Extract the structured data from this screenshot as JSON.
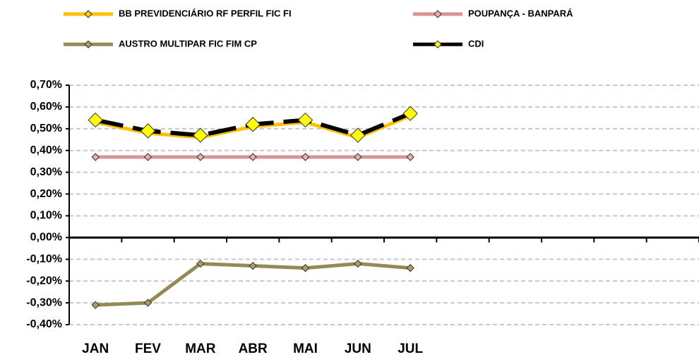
{
  "chart_data": {
    "type": "line",
    "categories": [
      "JAN",
      "FEV",
      "MAR",
      "ABR",
      "MAI",
      "JUN",
      "JUL",
      null,
      null,
      null,
      null,
      null
    ],
    "series": [
      {
        "name": "BB PREVIDENCIÁRIO RF PERFIL FIC FI",
        "color": "#FFC000",
        "marker_color": "#FFD000",
        "values": [
          0.53,
          0.48,
          0.46,
          0.51,
          0.53,
          0.46,
          0.56,
          null,
          null,
          null,
          null,
          null
        ]
      },
      {
        "name": "POUPANÇA - BANPARÁ",
        "color": "#D99594",
        "marker_color": "#E6B0AF",
        "values": [
          0.37,
          0.37,
          0.37,
          0.37,
          0.37,
          0.37,
          0.37,
          null,
          null,
          null,
          null,
          null
        ]
      },
      {
        "name": "AUSTRO MULTIPAR FIC FIM CP",
        "color": "#948A54",
        "marker_color": "#A89E66",
        "values": [
          -0.31,
          -0.3,
          -0.12,
          -0.13,
          -0.14,
          -0.12,
          -0.14,
          null,
          null,
          null,
          null,
          null
        ]
      },
      {
        "name": "CDI",
        "color": "#000000",
        "marker_color": "#FFFF00",
        "values": [
          0.54,
          0.49,
          0.47,
          0.52,
          0.54,
          0.47,
          0.57,
          null,
          null,
          null,
          null,
          null
        ]
      }
    ],
    "ylim": [
      -0.4,
      0.7
    ],
    "yticks": [
      {
        "value": -0.4,
        "label": "-0,40%"
      },
      {
        "value": -0.3,
        "label": "-0,30%"
      },
      {
        "value": -0.2,
        "label": "-0,20%"
      },
      {
        "value": -0.1,
        "label": "-0,10%"
      },
      {
        "value": 0,
        "label": "0,00%"
      },
      {
        "value": 0.1,
        "label": "0,10%"
      },
      {
        "value": 0.2,
        "label": "0,20%"
      },
      {
        "value": 0.3,
        "label": "0,30%"
      },
      {
        "value": 0.4,
        "label": "0,40%"
      },
      {
        "value": 0.5,
        "label": "0,50%"
      },
      {
        "value": 0.6,
        "label": "0,60%"
      },
      {
        "value": 0.7,
        "label": "0,70%"
      }
    ],
    "grid": true,
    "legend": "top"
  }
}
